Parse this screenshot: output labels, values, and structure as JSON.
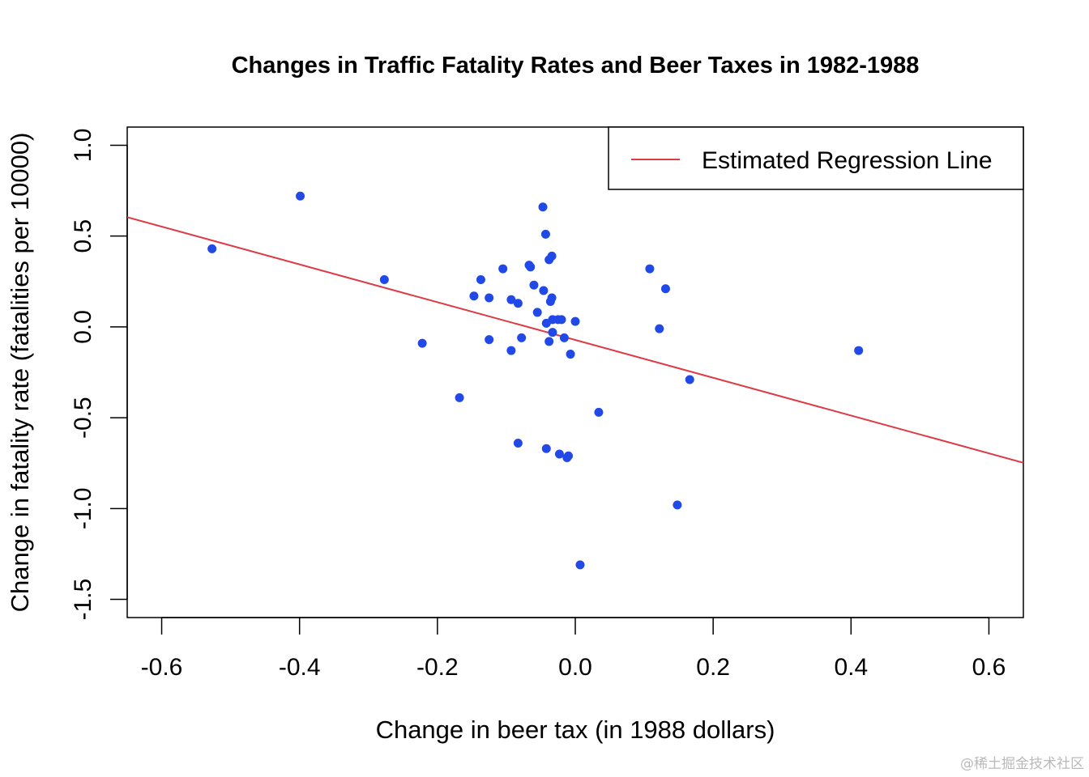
{
  "watermark": "@稀土掘金技术社区",
  "chart_data": {
    "type": "scatter",
    "title": "Changes in Traffic Fatality Rates and Beer Taxes in 1982-1988",
    "xlabel": "Change in beer tax (in 1988 dollars)",
    "ylabel": "Change in fatality rate (fatalities per 10000)",
    "xlim": [
      -0.65,
      0.65
    ],
    "ylim": [
      -1.6,
      1.1
    ],
    "xticks": [
      -0.6,
      -0.4,
      -0.2,
      0.0,
      0.2,
      0.4,
      0.6
    ],
    "xtick_labels": [
      "-0.6",
      "-0.4",
      "-0.2",
      "0.0",
      "0.2",
      "0.4",
      "0.6"
    ],
    "yticks": [
      -1.5,
      -1.0,
      -0.5,
      0.0,
      0.5,
      1.0
    ],
    "ytick_labels": [
      "-1.5",
      "-1.0",
      "-0.5",
      "0.0",
      "0.5",
      "1.0"
    ],
    "grid": false,
    "legend": {
      "position": "top-right",
      "entries": [
        {
          "label": "Estimated Regression Line",
          "color": "#dd3b45",
          "type": "line"
        }
      ]
    },
    "point_color": "#2149e8",
    "regression_line": {
      "intercept": -0.072,
      "slope": -1.04,
      "color": "#dd3b45"
    },
    "points": [
      {
        "x": -0.527,
        "y": 0.43
      },
      {
        "x": -0.399,
        "y": 0.72
      },
      {
        "x": -0.277,
        "y": 0.26
      },
      {
        "x": -0.222,
        "y": -0.09
      },
      {
        "x": -0.168,
        "y": -0.39
      },
      {
        "x": -0.147,
        "y": 0.17
      },
      {
        "x": -0.137,
        "y": 0.26
      },
      {
        "x": -0.125,
        "y": 0.16
      },
      {
        "x": -0.125,
        "y": -0.07
      },
      {
        "x": -0.105,
        "y": 0.32
      },
      {
        "x": -0.093,
        "y": 0.15
      },
      {
        "x": -0.093,
        "y": -0.13
      },
      {
        "x": -0.083,
        "y": 0.13
      },
      {
        "x": -0.083,
        "y": -0.64
      },
      {
        "x": -0.078,
        "y": -0.06
      },
      {
        "x": -0.067,
        "y": 0.34
      },
      {
        "x": -0.065,
        "y": 0.33
      },
      {
        "x": -0.06,
        "y": 0.23
      },
      {
        "x": -0.055,
        "y": 0.08
      },
      {
        "x": -0.047,
        "y": 0.66
      },
      {
        "x": -0.046,
        "y": 0.2
      },
      {
        "x": -0.043,
        "y": 0.51
      },
      {
        "x": -0.042,
        "y": 0.02
      },
      {
        "x": -0.042,
        "y": -0.67
      },
      {
        "x": -0.038,
        "y": 0.37
      },
      {
        "x": -0.038,
        "y": -0.08
      },
      {
        "x": -0.036,
        "y": 0.14
      },
      {
        "x": -0.034,
        "y": 0.16
      },
      {
        "x": -0.034,
        "y": 0.39
      },
      {
        "x": -0.033,
        "y": 0.04
      },
      {
        "x": -0.033,
        "y": -0.03
      },
      {
        "x": -0.025,
        "y": 0.04
      },
      {
        "x": -0.023,
        "y": -0.7
      },
      {
        "x": -0.02,
        "y": 0.04
      },
      {
        "x": -0.016,
        "y": -0.06
      },
      {
        "x": -0.012,
        "y": -0.72
      },
      {
        "x": -0.01,
        "y": -0.71
      },
      {
        "x": -0.007,
        "y": -0.15
      },
      {
        "x": 0.0,
        "y": 0.03
      },
      {
        "x": 0.007,
        "y": -1.31
      },
      {
        "x": 0.034,
        "y": -0.47
      },
      {
        "x": 0.108,
        "y": 0.32
      },
      {
        "x": 0.122,
        "y": -0.01
      },
      {
        "x": 0.131,
        "y": 0.21
      },
      {
        "x": 0.148,
        "y": -0.98
      },
      {
        "x": 0.166,
        "y": -0.29
      },
      {
        "x": 0.411,
        "y": -0.13
      }
    ]
  }
}
